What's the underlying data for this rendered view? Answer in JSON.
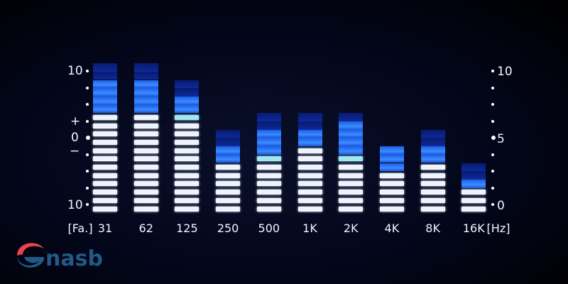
{
  "chart_data": {
    "type": "bar",
    "categories": [
      "31",
      "62",
      "125",
      "250",
      "500",
      "1K",
      "2K",
      "4K",
      "8K",
      "16K"
    ],
    "x_prefix": "[Fa.]",
    "x_unit": "[Hz]",
    "series": [
      {
        "white_segments": [
          12,
          12,
          11,
          6,
          6,
          8,
          6,
          5,
          6,
          3
        ],
        "teal_segments": [
          0,
          0,
          1,
          0,
          1,
          0,
          1,
          0,
          0,
          0
        ],
        "blue_segments": [
          4,
          4,
          2,
          2,
          3,
          2,
          4,
          3,
          2,
          1
        ],
        "dim_segments": [
          2,
          2,
          2,
          2,
          2,
          2,
          1,
          0,
          2,
          2
        ]
      }
    ],
    "total_segments": 18,
    "left_axis": {
      "top": "10",
      "plus": "+",
      "zero": "0",
      "minus": "−",
      "bottom": "10"
    },
    "right_axis": {
      "ticks": [
        "10",
        "5",
        "0"
      ],
      "range": [
        0,
        10
      ]
    },
    "colors": {
      "white": "#eef4ff",
      "teal": "#9fe6f2",
      "blue": "#2f7dff",
      "dim": "#0d2a9a",
      "background": "#02051a"
    }
  },
  "logo": {
    "text": "nasb",
    "red": "#e8424a",
    "blue": "#1f5a88"
  }
}
